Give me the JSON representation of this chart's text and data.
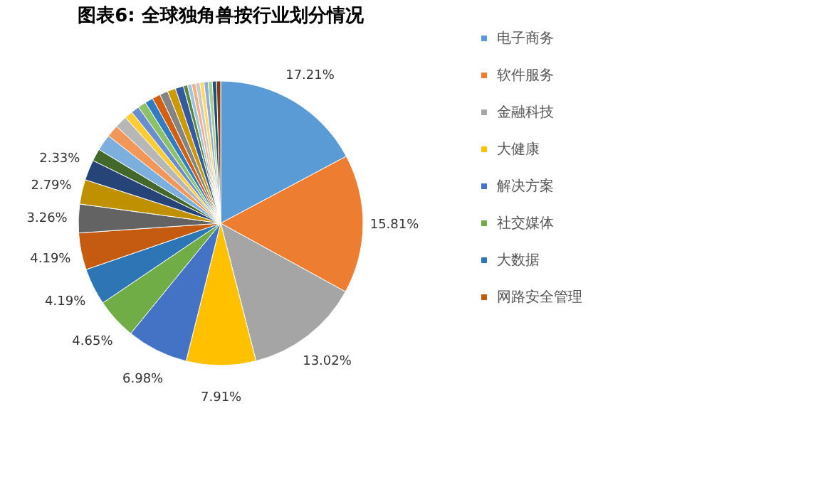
{
  "chart_data": {
    "type": "pie",
    "title": "图表6:   全球独角兽按行业划分情况",
    "categories": [
      "电子商务",
      "软件服务",
      "金融科技",
      "大健康",
      "解决方案",
      "社交媒体",
      "大数据",
      "网路安全管理",
      null,
      null,
      null,
      null,
      null,
      null,
      null,
      null,
      null,
      null,
      null,
      null,
      null,
      null,
      null,
      null,
      null,
      null,
      null,
      null,
      null,
      null,
      null,
      null
    ],
    "values": [
      17.21,
      15.81,
      13.02,
      7.91,
      6.98,
      4.65,
      4.19,
      4.19,
      3.26,
      2.79,
      2.33,
      1.4,
      1.86,
      1.4,
      1.4,
      0.93,
      0.93,
      0.93,
      0.93,
      0.93,
      0.93,
      0.93,
      0.93,
      0.47,
      0.47,
      0.47,
      0.47,
      0.47,
      0.47,
      0.47,
      0.47,
      0.47
    ],
    "value_labels": [
      "17.21%",
      "15.81%",
      "13.02%",
      "7.91%",
      "6.98%",
      "4.65%",
      "4.19%",
      "4.19%",
      "3.26%",
      "2.79%",
      "2.33%",
      null,
      null,
      null,
      null,
      null,
      null,
      null,
      null,
      null,
      null,
      null,
      null,
      null,
      null,
      null,
      null,
      null,
      null,
      null,
      null,
      null
    ],
    "colors": [
      "#5b9bd5",
      "#ed7d31",
      "#a5a5a5",
      "#ffc000",
      "#4472c4",
      "#70ad47",
      "#2e75b6",
      "#c55a11",
      "#636363",
      "#bf9000",
      "#264478",
      "#43682b",
      "#7cafdd",
      "#f1975a",
      "#b7b7b7",
      "#ffcd33",
      "#698ed0",
      "#8cc168",
      "#327dc2",
      "#d26012",
      "#848484",
      "#cc9a00",
      "#335aa1",
      "#5a8a39",
      "#9dc3e6",
      "#f4b183",
      "#c9c9c9",
      "#ffd966",
      "#8faadc",
      "#a9d18e",
      "#1f4e79",
      "#843c0c"
    ],
    "legend": "right"
  }
}
